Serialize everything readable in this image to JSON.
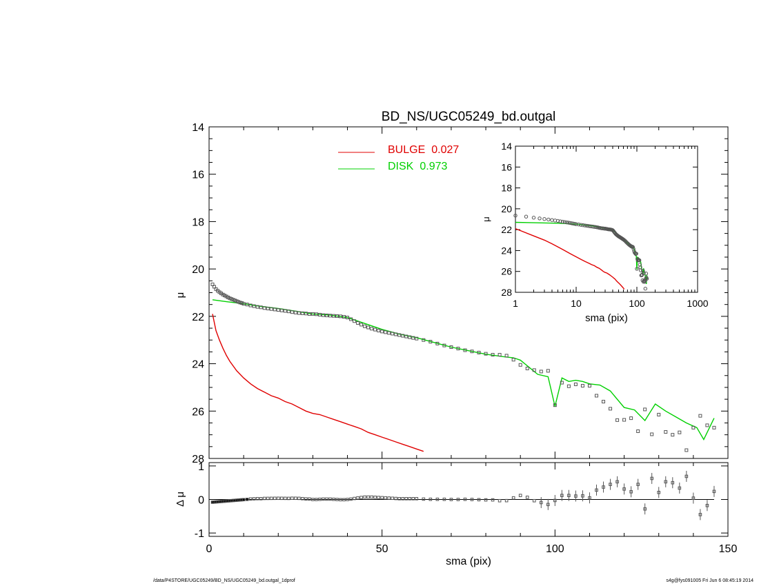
{
  "chart_data": [
    {
      "id": "main",
      "type": "line",
      "title": "BD_NS/UGC05249_bd.outgal",
      "xlabel": "",
      "ylabel": "μ",
      "xlim": [
        0,
        150
      ],
      "ylim": [
        28,
        14
      ],
      "yticks": [
        "14",
        "16",
        "18",
        "20",
        "22",
        "24",
        "26",
        "28"
      ],
      "series": [
        {
          "name": "BULGE",
          "fraction": "0.027",
          "color": "#e00000",
          "x": [
            1,
            2,
            3,
            4,
            5,
            6,
            8,
            10,
            12,
            14,
            16,
            18,
            20,
            22,
            24,
            26,
            28,
            30,
            32,
            34,
            36,
            38,
            40,
            42,
            44,
            46,
            48,
            50,
            52,
            54,
            56,
            58,
            60,
            62
          ],
          "y": [
            21.9,
            22.6,
            23.0,
            23.35,
            23.65,
            23.9,
            24.3,
            24.6,
            24.85,
            25.05,
            25.2,
            25.35,
            25.45,
            25.6,
            25.7,
            25.85,
            26.0,
            26.1,
            26.15,
            26.25,
            26.35,
            26.45,
            26.55,
            26.65,
            26.75,
            26.9,
            27.0,
            27.1,
            27.2,
            27.3,
            27.4,
            27.5,
            27.6,
            27.7
          ]
        },
        {
          "name": "DISK",
          "fraction": "0.973",
          "color": "#00d000",
          "x": [
            1,
            5,
            10,
            15,
            20,
            25,
            30,
            35,
            40,
            45,
            50,
            55,
            60,
            65,
            70,
            75,
            80,
            85,
            88,
            90,
            95,
            98,
            100,
            102,
            104,
            106,
            108,
            110,
            113,
            116,
            120,
            123,
            126,
            129,
            132,
            135,
            138,
            141,
            143,
            146
          ],
          "y": [
            21.3,
            21.38,
            21.47,
            21.58,
            21.67,
            21.78,
            21.9,
            21.95,
            22.05,
            22.3,
            22.55,
            22.75,
            22.9,
            23.1,
            23.3,
            23.45,
            23.6,
            23.7,
            23.75,
            23.85,
            24.45,
            24.55,
            25.8,
            24.6,
            24.75,
            24.7,
            24.75,
            24.85,
            24.9,
            25.15,
            25.85,
            25.95,
            26.4,
            25.7,
            26.0,
            26.25,
            26.5,
            26.7,
            27.2,
            26.3
          ]
        }
      ],
      "observed": {
        "name": "data",
        "color": "#555555",
        "x": [
          1,
          1.5,
          2,
          2.5,
          3,
          3.5,
          4,
          4.5,
          5,
          5.5,
          6,
          6.5,
          7,
          7.5,
          8,
          8.5,
          9,
          9.5,
          10,
          11,
          12,
          13,
          14,
          15,
          16,
          17,
          18,
          19,
          20,
          21,
          22,
          23,
          24,
          25,
          26,
          27,
          28,
          29,
          30,
          31,
          32,
          33,
          34,
          35,
          36,
          37,
          38,
          39,
          40,
          41,
          42,
          43,
          44,
          45,
          46,
          47,
          48,
          49,
          50,
          51,
          52,
          53,
          54,
          55,
          56,
          57,
          58,
          59,
          60,
          62,
          64,
          66,
          68,
          70,
          72,
          74,
          76,
          78,
          80,
          82,
          84,
          86,
          88,
          90,
          92,
          94,
          96,
          98,
          100,
          102,
          104,
          106,
          108,
          110,
          112,
          114,
          116,
          118,
          120,
          122,
          124,
          126,
          128,
          130,
          132,
          134,
          136,
          138,
          140,
          142,
          144,
          146
        ],
        "y": [
          20.65,
          20.75,
          20.85,
          20.92,
          20.98,
          21.03,
          21.08,
          21.12,
          21.16,
          21.2,
          21.24,
          21.27,
          21.3,
          21.33,
          21.36,
          21.39,
          21.42,
          21.44,
          21.47,
          21.5,
          21.54,
          21.57,
          21.6,
          21.62,
          21.65,
          21.67,
          21.69,
          21.71,
          21.73,
          21.75,
          21.77,
          21.79,
          21.82,
          21.84,
          21.86,
          21.87,
          21.88,
          21.9,
          21.9,
          21.91,
          21.93,
          21.95,
          21.96,
          21.97,
          21.98,
          21.99,
          22.0,
          22.02,
          22.05,
          22.12,
          22.2,
          22.28,
          22.35,
          22.42,
          22.47,
          22.52,
          22.56,
          22.6,
          22.64,
          22.67,
          22.7,
          22.73,
          22.76,
          22.79,
          22.82,
          22.85,
          22.88,
          22.91,
          22.94,
          23.0,
          23.07,
          23.15,
          23.23,
          23.3,
          23.36,
          23.43,
          23.48,
          23.53,
          23.58,
          23.62,
          23.62,
          23.66,
          23.83,
          24.05,
          24.2,
          24.27,
          24.33,
          24.3,
          25.75,
          24.8,
          24.95,
          24.87,
          24.93,
          24.93,
          25.35,
          25.6,
          25.9,
          26.38,
          26.37,
          26.3,
          26.85,
          25.93,
          26.98,
          26.15,
          26.88,
          27.0,
          26.9,
          27.65,
          26.7,
          26.2,
          26.6,
          26.7
        ]
      }
    },
    {
      "id": "inset",
      "type": "line",
      "title": "",
      "xlabel": "sma (pix)",
      "ylabel": "μ",
      "xscale": "log",
      "xlim": [
        1,
        1000
      ],
      "ylim": [
        28,
        14
      ],
      "xticks": [
        "1",
        "10",
        "100",
        "1000"
      ],
      "yticks": [
        "14",
        "16",
        "18",
        "20",
        "22",
        "24",
        "26",
        "28"
      ]
    },
    {
      "id": "residual",
      "type": "scatter",
      "title": "",
      "xlabel": "sma (pix)",
      "ylabel": "Δ μ",
      "xlim": [
        0,
        150
      ],
      "ylim": [
        -1.1,
        1.1
      ],
      "xticks": [
        "0",
        "50",
        "100",
        "150"
      ],
      "yticks": [
        "1",
        "0",
        "-1"
      ]
    }
  ],
  "footer": {
    "left": "/data/P4STORE/UGC05249/BD_NS/UGC05249_bd.outgal_1dprof",
    "right": "s4g@fys091005  Fri Jun  6 08:45:19 2014"
  }
}
